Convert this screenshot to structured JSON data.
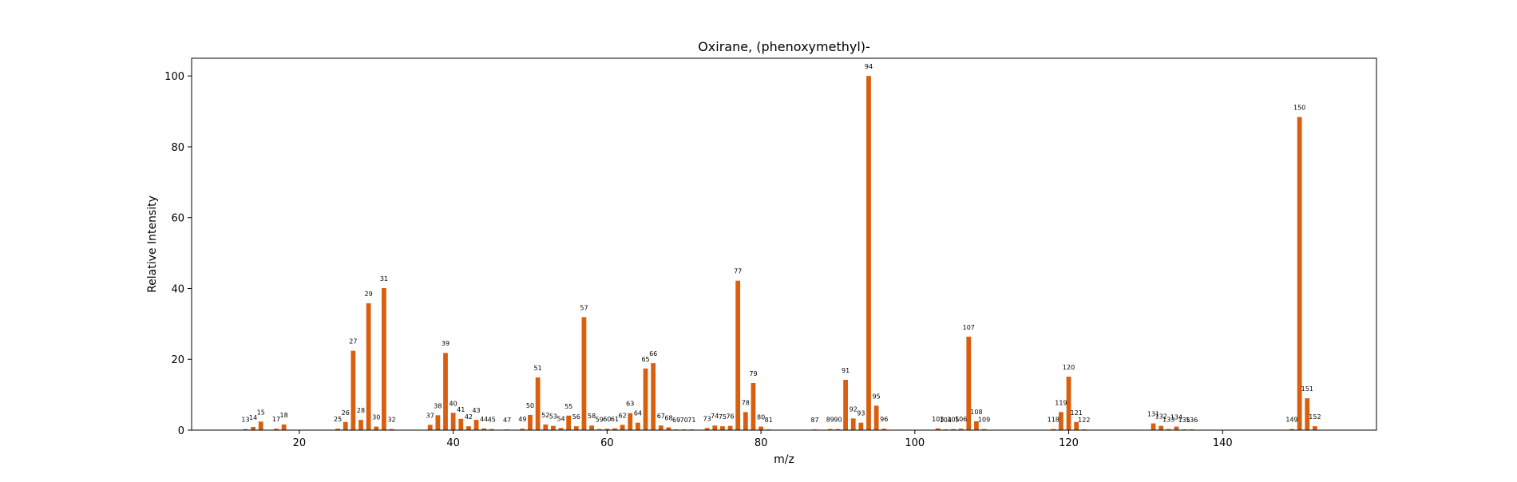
{
  "chart_data": {
    "type": "bar",
    "title": "Oxirane, (phenoxymethyl)-",
    "xlabel": "m/z",
    "ylabel": "Relative Intensity",
    "xlim": [
      6,
      160
    ],
    "ylim": [
      0,
      105
    ],
    "xticks": [
      20,
      40,
      60,
      80,
      100,
      120,
      140
    ],
    "yticks": [
      0,
      20,
      40,
      60,
      80,
      100
    ],
    "grid": false,
    "bar_color": "#d95f0e",
    "peaks": [
      {
        "mz": 13,
        "intensity": 0.3
      },
      {
        "mz": 14,
        "intensity": 0.9
      },
      {
        "mz": 15,
        "intensity": 2.4
      },
      {
        "mz": 17,
        "intensity": 0.4
      },
      {
        "mz": 18,
        "intensity": 1.6
      },
      {
        "mz": 25,
        "intensity": 0.4
      },
      {
        "mz": 26,
        "intensity": 2.3
      },
      {
        "mz": 27,
        "intensity": 22.4
      },
      {
        "mz": 28,
        "intensity": 2.9
      },
      {
        "mz": 29,
        "intensity": 35.8
      },
      {
        "mz": 30,
        "intensity": 1.0
      },
      {
        "mz": 31,
        "intensity": 40.1
      },
      {
        "mz": 32,
        "intensity": 0.3
      },
      {
        "mz": 37,
        "intensity": 1.5
      },
      {
        "mz": 38,
        "intensity": 4.2
      },
      {
        "mz": 39,
        "intensity": 21.8
      },
      {
        "mz": 40,
        "intensity": 4.9
      },
      {
        "mz": 41,
        "intensity": 3.2
      },
      {
        "mz": 42,
        "intensity": 1.1
      },
      {
        "mz": 43,
        "intensity": 2.9
      },
      {
        "mz": 44,
        "intensity": 0.5
      },
      {
        "mz": 45,
        "intensity": 0.3
      },
      {
        "mz": 47,
        "intensity": 0.2
      },
      {
        "mz": 49,
        "intensity": 0.4
      },
      {
        "mz": 50,
        "intensity": 4.3
      },
      {
        "mz": 51,
        "intensity": 14.9
      },
      {
        "mz": 52,
        "intensity": 1.6
      },
      {
        "mz": 53,
        "intensity": 1.2
      },
      {
        "mz": 54,
        "intensity": 0.6
      },
      {
        "mz": 55,
        "intensity": 4.1
      },
      {
        "mz": 56,
        "intensity": 1.1
      },
      {
        "mz": 57,
        "intensity": 31.9
      },
      {
        "mz": 58,
        "intensity": 1.3
      },
      {
        "mz": 59,
        "intensity": 0.3
      },
      {
        "mz": 60,
        "intensity": 0.4
      },
      {
        "mz": 61,
        "intensity": 0.5
      },
      {
        "mz": 62,
        "intensity": 1.5
      },
      {
        "mz": 63,
        "intensity": 4.8
      },
      {
        "mz": 64,
        "intensity": 2.1
      },
      {
        "mz": 65,
        "intensity": 17.4
      },
      {
        "mz": 66,
        "intensity": 18.9
      },
      {
        "mz": 67,
        "intensity": 1.3
      },
      {
        "mz": 68,
        "intensity": 0.8
      },
      {
        "mz": 69,
        "intensity": 0.2
      },
      {
        "mz": 70,
        "intensity": 0.2
      },
      {
        "mz": 71,
        "intensity": 0.2
      },
      {
        "mz": 73,
        "intensity": 0.6
      },
      {
        "mz": 74,
        "intensity": 1.3
      },
      {
        "mz": 75,
        "intensity": 1.1
      },
      {
        "mz": 76,
        "intensity": 1.2
      },
      {
        "mz": 77,
        "intensity": 42.2
      },
      {
        "mz": 78,
        "intensity": 5.1
      },
      {
        "mz": 79,
        "intensity": 13.3
      },
      {
        "mz": 80,
        "intensity": 1.0
      },
      {
        "mz": 81,
        "intensity": 0.2
      },
      {
        "mz": 87,
        "intensity": 0.2
      },
      {
        "mz": 89,
        "intensity": 0.3
      },
      {
        "mz": 90,
        "intensity": 0.3
      },
      {
        "mz": 91,
        "intensity": 14.2
      },
      {
        "mz": 92,
        "intensity": 3.3
      },
      {
        "mz": 93,
        "intensity": 2.1
      },
      {
        "mz": 94,
        "intensity": 100
      },
      {
        "mz": 95,
        "intensity": 6.9
      },
      {
        "mz": 96,
        "intensity": 0.4
      },
      {
        "mz": 103,
        "intensity": 0.5
      },
      {
        "mz": 104,
        "intensity": 0.2
      },
      {
        "mz": 105,
        "intensity": 0.3
      },
      {
        "mz": 106,
        "intensity": 0.4
      },
      {
        "mz": 107,
        "intensity": 26.4
      },
      {
        "mz": 108,
        "intensity": 2.5
      },
      {
        "mz": 109,
        "intensity": 0.3
      },
      {
        "mz": 118,
        "intensity": 0.3
      },
      {
        "mz": 119,
        "intensity": 5.1
      },
      {
        "mz": 120,
        "intensity": 15.1
      },
      {
        "mz": 121,
        "intensity": 2.3
      },
      {
        "mz": 122,
        "intensity": 0.2
      },
      {
        "mz": 131,
        "intensity": 1.9
      },
      {
        "mz": 132,
        "intensity": 1.2
      },
      {
        "mz": 133,
        "intensity": 0.3
      },
      {
        "mz": 134,
        "intensity": 1.0
      },
      {
        "mz": 135,
        "intensity": 0.2
      },
      {
        "mz": 136,
        "intensity": 0.2
      },
      {
        "mz": 149,
        "intensity": 0.3
      },
      {
        "mz": 150,
        "intensity": 88.4
      },
      {
        "mz": 151,
        "intensity": 9.0
      },
      {
        "mz": 152,
        "intensity": 1.1
      }
    ]
  }
}
